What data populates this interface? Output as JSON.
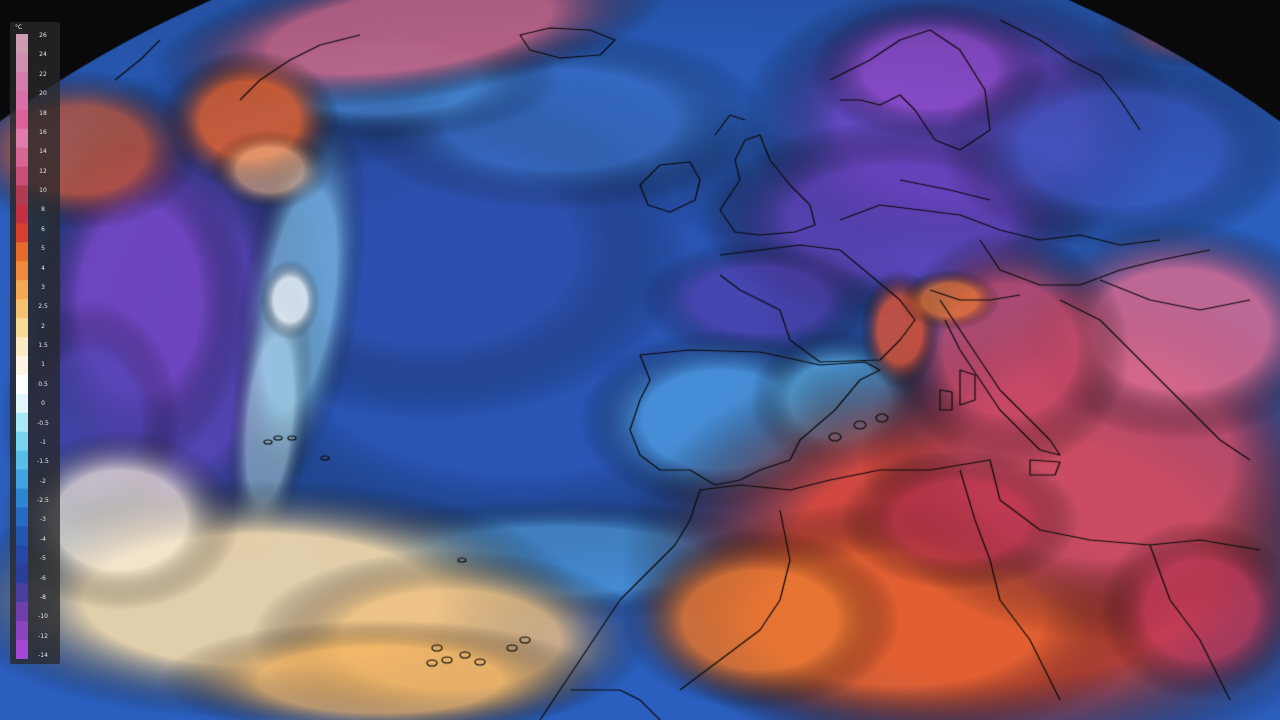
{
  "legend": {
    "unit": "°C",
    "ticks": [
      "26",
      "24",
      "22",
      "20",
      "18",
      "16",
      "14",
      "12",
      "10",
      "8",
      "6",
      "5",
      "4",
      "3",
      "2.5",
      "2",
      "1.5",
      "1",
      "0.5",
      "0",
      "-0.5",
      "-1",
      "-1.5",
      "-2",
      "-2.5",
      "-3",
      "-4",
      "-5",
      "-6",
      "-8",
      "-10",
      "-12",
      "-14"
    ],
    "colors": [
      "#cf9bb0",
      "#cf8fb0",
      "#d27dad",
      "#d86fa6",
      "#dc6198",
      "#e07bad",
      "#d86693",
      "#c94f79",
      "#b23a51",
      "#c23141",
      "#d93f2f",
      "#e86b2b",
      "#f08a3a",
      "#f4a84f",
      "#f7c26f",
      "#f9d996",
      "#fbeac4",
      "#fdf4e3",
      "#ffffff",
      "#e3f6fb",
      "#a9e8f4",
      "#78d3ee",
      "#57bde9",
      "#3fa3df",
      "#2d86d1",
      "#276bc2",
      "#2457b1",
      "#2448a3",
      "#2a3f9a",
      "#4a3f9e",
      "#6f3fae",
      "#8b43c0",
      "#a348d2"
    ]
  }
}
